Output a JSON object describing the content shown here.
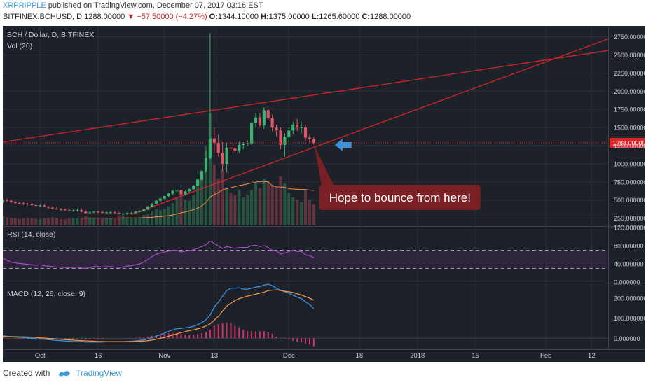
{
  "header": {
    "user": "XRPRIPPLE",
    "published": "published on TradingView.com, December 07, 2017 03:16 EST",
    "symbol": "BITFINEX:BCHUSD, D",
    "price": "1288.00000",
    "change": "▼ −57.50000 (−4.27%)",
    "ohlc": [
      {
        "k": "O:",
        "v": "1344.10000"
      },
      {
        "k": "H:",
        "v": "1375.00000"
      },
      {
        "k": "L:",
        "v": "1265.60000"
      },
      {
        "k": "C:",
        "v": "1288.00000"
      }
    ]
  },
  "footer": {
    "created": "Created with",
    "brand": "TradingView"
  },
  "colors": {
    "background": "#1d2129",
    "up": "#3cb371",
    "down": "#e05668",
    "trendline": "#e02424",
    "rsi": "#a84bc4",
    "macd": "#3d8fdc",
    "signal": "#f0924a",
    "hist": "#cc3366",
    "arrow": "#3f8fd8",
    "callout": "#7a1f23"
  },
  "chart_data": [
    {
      "type": "candlestick",
      "title": "BCH / Dollar, D, BITFINEX",
      "volume_label": "Vol (20)",
      "last_price_label": "1288.000000",
      "x_ticks": [
        "Oct",
        "16",
        "Nov",
        "13",
        "Dec",
        "18",
        "2018",
        "15",
        "Feb",
        "12"
      ],
      "y_ticks": [
        "250.000000",
        "500.000000",
        "750.000000",
        "1000.000000",
        "1250.000000",
        "1500.000000",
        "1750.000000",
        "2000.000000",
        "2250.000000",
        "2500.000000",
        "2750.000000"
      ],
      "ylim": [
        150,
        2900
      ],
      "x_range": [
        "2017-09-23",
        "2018-02-16"
      ],
      "candles": {
        "dates": [
          "2017-09-23",
          "2017-09-24",
          "2017-09-25",
          "2017-09-26",
          "2017-09-27",
          "2017-09-28",
          "2017-09-29",
          "2017-09-30",
          "2017-10-01",
          "2017-10-02",
          "2017-10-03",
          "2017-10-04",
          "2017-10-05",
          "2017-10-06",
          "2017-10-07",
          "2017-10-08",
          "2017-10-09",
          "2017-10-10",
          "2017-10-11",
          "2017-10-12",
          "2017-10-13",
          "2017-10-14",
          "2017-10-15",
          "2017-10-16",
          "2017-10-17",
          "2017-10-18",
          "2017-10-19",
          "2017-10-20",
          "2017-10-21",
          "2017-10-22",
          "2017-10-23",
          "2017-10-24",
          "2017-10-25",
          "2017-10-26",
          "2017-10-27",
          "2017-10-28",
          "2017-10-29",
          "2017-10-30",
          "2017-10-31",
          "2017-11-01",
          "2017-11-02",
          "2017-11-03",
          "2017-11-04",
          "2017-11-05",
          "2017-11-06",
          "2017-11-07",
          "2017-11-08",
          "2017-11-09",
          "2017-11-10",
          "2017-11-11",
          "2017-11-12",
          "2017-11-13",
          "2017-11-14",
          "2017-11-15",
          "2017-11-16",
          "2017-11-17",
          "2017-11-18",
          "2017-11-19",
          "2017-11-20",
          "2017-11-21",
          "2017-11-22",
          "2017-11-23",
          "2017-11-24",
          "2017-11-25",
          "2017-11-26",
          "2017-11-27",
          "2017-11-28",
          "2017-11-29",
          "2017-11-30",
          "2017-12-01",
          "2017-12-02",
          "2017-12-03",
          "2017-12-04",
          "2017-12-05",
          "2017-12-06",
          "2017-12-07"
        ],
        "open": [
          470,
          500,
          490,
          470,
          460,
          455,
          450,
          440,
          430,
          420,
          425,
          405,
          395,
          380,
          375,
          370,
          360,
          355,
          355,
          360,
          340,
          320,
          330,
          340,
          335,
          325,
          330,
          330,
          320,
          305,
          310,
          320,
          320,
          340,
          345,
          370,
          410,
          450,
          490,
          520,
          555,
          590,
          625,
          630,
          580,
          620,
          650,
          700,
          780,
          900,
          1080,
          1350,
          1290,
          1150,
          1000,
          1220,
          1210,
          1180,
          1260,
          1270,
          1280,
          1560,
          1640,
          1530,
          1740,
          1630,
          1500,
          1460,
          1260,
          1370,
          1460,
          1540,
          1500,
          1500,
          1360,
          1344
        ],
        "high": [
          520,
          520,
          510,
          490,
          475,
          470,
          460,
          455,
          445,
          440,
          445,
          420,
          410,
          400,
          390,
          385,
          375,
          370,
          375,
          380,
          360,
          345,
          350,
          355,
          350,
          340,
          345,
          345,
          335,
          325,
          330,
          335,
          350,
          360,
          380,
          420,
          460,
          500,
          530,
          560,
          600,
          640,
          660,
          650,
          630,
          660,
          710,
          800,
          920,
          1180,
          2800,
          1500,
          1400,
          1300,
          1290,
          1300,
          1290,
          1300,
          1300,
          1320,
          1580,
          1700,
          1700,
          1780,
          1760,
          1680,
          1540,
          1500,
          1420,
          1500,
          1580,
          1620,
          1580,
          1540,
          1400,
          1375
        ],
        "low": [
          450,
          470,
          460,
          440,
          440,
          430,
          430,
          420,
          410,
          400,
          400,
          380,
          370,
          365,
          355,
          350,
          345,
          340,
          340,
          330,
          315,
          310,
          315,
          320,
          315,
          310,
          315,
          315,
          300,
          290,
          295,
          305,
          310,
          330,
          340,
          360,
          400,
          440,
          480,
          510,
          540,
          570,
          600,
          560,
          560,
          600,
          640,
          690,
          760,
          880,
          1060,
          1150,
          1100,
          900,
          880,
          1140,
          1150,
          1150,
          1200,
          1240,
          1260,
          1500,
          1500,
          1480,
          1600,
          1450,
          1380,
          1200,
          1100,
          1260,
          1400,
          1450,
          1420,
          1320,
          1280,
          1265
        ],
        "close": [
          500,
          490,
          470,
          460,
          455,
          450,
          440,
          430,
          420,
          425,
          405,
          395,
          380,
          375,
          370,
          360,
          355,
          355,
          360,
          340,
          320,
          330,
          340,
          335,
          325,
          330,
          330,
          320,
          305,
          310,
          320,
          320,
          340,
          345,
          370,
          410,
          450,
          490,
          520,
          555,
          590,
          625,
          630,
          580,
          620,
          650,
          700,
          780,
          900,
          1080,
          1350,
          1290,
          1150,
          1000,
          1220,
          1210,
          1180,
          1260,
          1270,
          1280,
          1560,
          1640,
          1530,
          1740,
          1630,
          1500,
          1460,
          1260,
          1370,
          1460,
          1540,
          1500,
          1500,
          1360,
          1344,
          1288
        ]
      },
      "volume": [
        40,
        35,
        30,
        30,
        28,
        30,
        32,
        30,
        28,
        28,
        30,
        32,
        35,
        30,
        28,
        26,
        30,
        32,
        30,
        34,
        40,
        35,
        30,
        30,
        28,
        30,
        32,
        28,
        40,
        38,
        35,
        32,
        30,
        35,
        45,
        50,
        60,
        70,
        65,
        70,
        80,
        95,
        120,
        150,
        110,
        105,
        130,
        200,
        230,
        340,
        480,
        260,
        200,
        240,
        160,
        140,
        130,
        150,
        120,
        130,
        150,
        180,
        160,
        200,
        190,
        175,
        160,
        210,
        180,
        140,
        120,
        110,
        100,
        150,
        110,
        90
      ],
      "volume_ma": [
        null,
        null,
        null,
        null,
        null,
        null,
        null,
        null,
        null,
        null,
        null,
        null,
        null,
        null,
        null,
        null,
        null,
        null,
        null,
        31,
        31,
        31,
        31,
        31,
        31,
        31,
        31,
        31,
        31,
        32,
        32,
        32,
        32,
        32,
        33,
        34,
        35,
        37,
        38,
        40,
        42,
        45,
        49,
        54,
        58,
        62,
        67,
        74,
        84,
        99,
        121,
        132,
        141,
        152,
        158,
        162,
        166,
        171,
        174,
        178,
        182,
        186,
        188,
        189,
        186,
        170,
        165,
        165,
        163,
        158,
        156,
        155,
        154,
        154,
        152,
        150
      ],
      "trendlines": [
        {
          "from": [
            "2017-09-23",
            1300
          ],
          "to": [
            "2018-02-16",
            2560
          ]
        },
        {
          "from": [
            "2017-10-24",
            300
          ],
          "to": [
            "2018-02-16",
            2720
          ]
        }
      ],
      "annotation": "Hope to bounce from here!"
    },
    {
      "type": "line",
      "title": "RSI (14, close)",
      "y_ticks": [
        "0.000000",
        "40.000000",
        "80.000000",
        "120.000000"
      ],
      "ylim": [
        0,
        120
      ],
      "bands": [
        30,
        70
      ],
      "values": [
        52,
        48,
        44,
        42,
        41,
        40,
        39,
        38,
        37,
        38,
        36,
        35,
        34,
        33,
        33,
        32,
        32,
        32,
        33,
        31,
        30,
        32,
        34,
        34,
        33,
        34,
        34,
        33,
        32,
        33,
        35,
        36,
        38,
        40,
        44,
        50,
        56,
        61,
        64,
        66,
        68,
        70,
        70,
        66,
        68,
        69,
        71,
        74,
        78,
        82,
        90,
        85,
        79,
        74,
        78,
        76,
        74,
        76,
        76,
        76,
        80,
        81,
        78,
        80,
        76,
        70,
        68,
        62,
        64,
        67,
        70,
        67,
        67,
        60,
        58,
        54
      ]
    },
    {
      "type": "line",
      "title": "MACD (12, 26, close, 9)",
      "y_ticks": [
        "0.000000",
        "100.000000",
        "200.000000"
      ],
      "ylim": [
        -55,
        270
      ],
      "macd": [
        12,
        10,
        8,
        6,
        4,
        3,
        1,
        -1,
        -3,
        -4,
        -5,
        -7,
        -9,
        -11,
        -12,
        -14,
        -15,
        -16,
        -16,
        -17,
        -19,
        -19,
        -19,
        -19,
        -19,
        -18,
        -17,
        -17,
        -17,
        -17,
        -16,
        -15,
        -13,
        -11,
        -8,
        -3,
        3,
        10,
        18,
        26,
        34,
        42,
        48,
        49,
        52,
        55,
        60,
        68,
        78,
        92,
        115,
        155,
        180,
        210,
        238,
        250,
        250,
        252,
        245,
        245,
        250,
        255,
        258,
        265,
        270,
        262,
        250,
        240,
        232,
        225,
        215,
        205,
        198,
        182,
        168,
        148
      ],
      "signal": [
        8,
        8,
        8,
        8,
        7,
        7,
        6,
        5,
        4,
        2,
        1,
        -1,
        -2,
        -4,
        -5,
        -7,
        -8,
        -9,
        -11,
        -12,
        -13,
        -14,
        -15,
        -16,
        -16,
        -17,
        -17,
        -17,
        -17,
        -17,
        -17,
        -17,
        -16,
        -15,
        -14,
        -12,
        -9,
        -5,
        -1,
        4,
        10,
        16,
        22,
        28,
        33,
        38,
        42,
        47,
        53,
        61,
        72,
        90,
        110,
        135,
        160,
        175,
        188,
        198,
        204,
        210,
        215,
        220,
        225,
        230,
        238,
        240,
        242,
        238,
        235,
        232,
        228,
        222,
        216,
        208,
        200,
        190
      ],
      "histogram": [
        4,
        2,
        0,
        -2,
        -3,
        -4,
        -5,
        -6,
        -7,
        -6,
        -6,
        -6,
        -7,
        -7,
        -7,
        -7,
        -7,
        -7,
        -5,
        -5,
        -6,
        -5,
        -4,
        -3,
        -3,
        -1,
        0,
        0,
        0,
        0,
        1,
        2,
        3,
        4,
        6,
        9,
        12,
        15,
        19,
        22,
        24,
        26,
        26,
        21,
        19,
        17,
        18,
        21,
        25,
        31,
        43,
        65,
        70,
        75,
        78,
        75,
        62,
        54,
        41,
        35,
        35,
        35,
        33,
        35,
        32,
        22,
        8,
        2,
        -3,
        -7,
        -13,
        -17,
        -18,
        -26,
        -32,
        -42
      ]
    }
  ]
}
